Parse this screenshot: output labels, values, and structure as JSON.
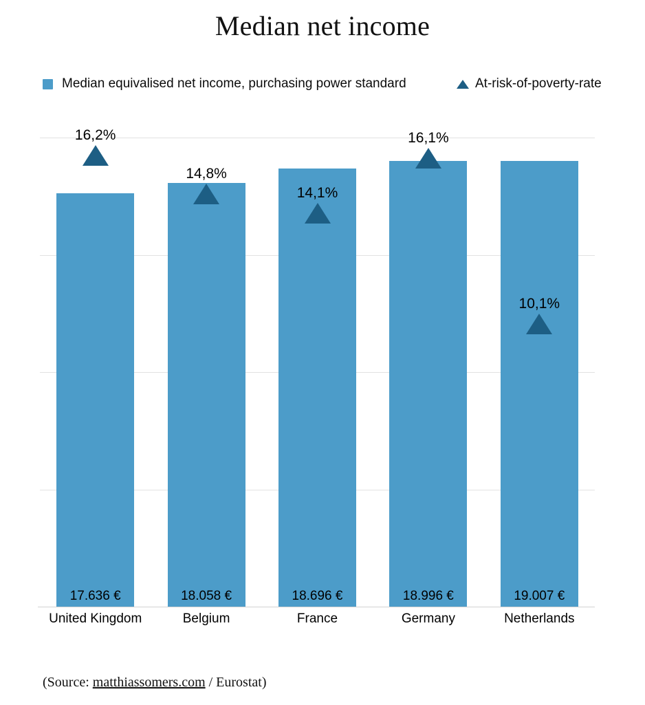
{
  "title": "Median net income",
  "legend": {
    "bar_label": "Median equivalised net income, purchasing power standard",
    "marker_label": "At-risk-of-poverty-rate"
  },
  "source": {
    "prefix": "(Source: ",
    "link": "matthiassomers.com",
    "suffix": " / Eurostat)"
  },
  "colors": {
    "bar": "#4c9cc9",
    "marker": "#1d5e84",
    "gridline": "#e2e2e2",
    "axis": "#d2d2d2"
  },
  "chart_data": {
    "type": "bar",
    "categories": [
      "United Kingdom",
      "Belgium",
      "France",
      "Germany",
      "Netherlands"
    ],
    "series": [
      {
        "name": "Median equivalised net income, purchasing power standard",
        "unit": "EUR",
        "values": [
          17636,
          18058,
          18696,
          18996,
          19007
        ],
        "labels": [
          "17.636 €",
          "18.058 €",
          "18.696 €",
          "18.996 €",
          "19.007 €"
        ]
      },
      {
        "name": "At-risk-of-poverty-rate",
        "unit": "%",
        "values": [
          16.2,
          14.8,
          14.1,
          16.1,
          10.1
        ],
        "labels": [
          "16,2%",
          "14,8%",
          "14,1%",
          "16,1%",
          "10,1%"
        ]
      }
    ],
    "ylim": [
      0,
      20000
    ],
    "y2lim": [
      0,
      17
    ],
    "gridlines": "horizontal-every-5000",
    "legend_position": "top",
    "value_labels_position": "inside-bar-bottom",
    "marker_labels_position": "above-marker"
  }
}
